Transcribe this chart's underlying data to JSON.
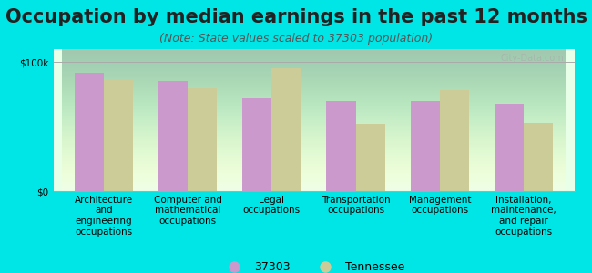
{
  "title": "Occupation by median earnings in the past 12 months",
  "subtitle": "(Note: State values scaled to 37303 population)",
  "categories": [
    "Architecture\nand\nengineering\noccupations",
    "Computer and\nmathematical\noccupations",
    "Legal\noccupations",
    "Transportation\noccupations",
    "Management\noccupations",
    "Installation,\nmaintenance,\nand repair\noccupations"
  ],
  "values_37303": [
    92000,
    85000,
    72000,
    70000,
    70000,
    68000
  ],
  "values_tennessee": [
    87000,
    80000,
    95000,
    52000,
    78000,
    53000
  ],
  "color_37303": "#cc99cc",
  "color_tennessee": "#cccc99",
  "ylim": [
    0,
    110000
  ],
  "ytick_labels": [
    "$0",
    "$100k"
  ],
  "background_color": "#e8ffe8",
  "outer_background": "#00e5e5",
  "bar_width": 0.35,
  "watermark": "City-Data.com",
  "legend_label_37303": "37303",
  "legend_label_tennessee": "Tennessee",
  "title_fontsize": 15,
  "subtitle_fontsize": 9,
  "tick_fontsize": 7.5,
  "legend_fontsize": 9
}
